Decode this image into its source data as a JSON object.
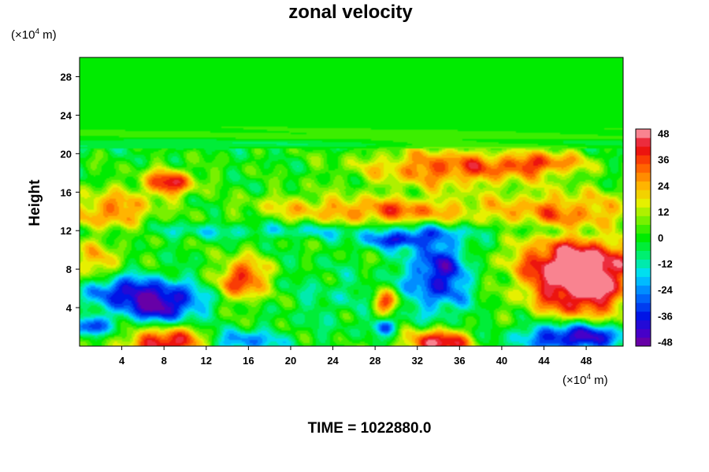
{
  "chart_data": {
    "type": "heatmap",
    "title": "zonal velocity",
    "ylabel": "Height",
    "xunit": {
      "pre": "(×10",
      "sup": "4",
      "post": " m)"
    },
    "yunit": {
      "pre": "(×10",
      "sup": "4",
      "post": " m)"
    },
    "footer": "TIME = 1022880.0",
    "xlim": [
      0,
      51.5
    ],
    "ylim": [
      0,
      30
    ],
    "xticks": [
      4,
      8,
      12,
      16,
      20,
      24,
      28,
      32,
      36,
      40,
      44,
      48
    ],
    "yticks": [
      4,
      8,
      12,
      16,
      20,
      24,
      28
    ],
    "colorbar": {
      "ticks": [
        48,
        36,
        24,
        12,
        0,
        -12,
        -24,
        -36,
        -48
      ],
      "range": [
        -50,
        50
      ],
      "levels": 25
    },
    "features": [
      {
        "x": 0,
        "y": 22,
        "rx": 60,
        "ry": 0.6,
        "v": 4,
        "desc": "stratified band"
      },
      {
        "x": 0,
        "y": 21,
        "rx": 60,
        "ry": 0.5,
        "v": -6
      },
      {
        "x": 35,
        "y": 18.5,
        "rx": 8,
        "ry": 2,
        "v": 34
      },
      {
        "x": 44,
        "y": 19,
        "rx": 4,
        "ry": 1.2,
        "v": 28
      },
      {
        "x": 8.5,
        "y": 17,
        "rx": 2.5,
        "ry": 1.4,
        "v": 40
      },
      {
        "x": 3,
        "y": 14,
        "rx": 4,
        "ry": 2.2,
        "v": 30
      },
      {
        "x": 30,
        "y": 14,
        "rx": 8,
        "ry": 1.5,
        "v": 32
      },
      {
        "x": 46,
        "y": 14,
        "rx": 7,
        "ry": 2.2,
        "v": 28
      },
      {
        "x": 20,
        "y": 14.5,
        "rx": 5,
        "ry": 1.5,
        "v": 12
      },
      {
        "x": 25,
        "y": 12,
        "rx": 30,
        "ry": 0.8,
        "v": -14
      },
      {
        "x": 30,
        "y": 11,
        "rx": 3,
        "ry": 0.8,
        "v": -34
      },
      {
        "x": 34,
        "y": 7.5,
        "rx": 3,
        "ry": 4,
        "v": -40
      },
      {
        "x": 7.5,
        "y": 4.5,
        "rx": 4,
        "ry": 2.2,
        "v": -50
      },
      {
        "x": 3,
        "y": 6,
        "rx": 3,
        "ry": 1.5,
        "v": -30
      },
      {
        "x": 15.5,
        "y": 7,
        "rx": 2.2,
        "ry": 2.2,
        "v": 42
      },
      {
        "x": 1.5,
        "y": 8.5,
        "rx": 2.5,
        "ry": 2.5,
        "v": 22
      },
      {
        "x": 47.5,
        "y": 6,
        "rx": 5,
        "ry": 3.5,
        "v": 50
      },
      {
        "x": 47,
        "y": 9,
        "rx": 6,
        "ry": 2.5,
        "v": 36
      },
      {
        "x": 47,
        "y": 1,
        "rx": 5,
        "ry": 1.5,
        "v": -50
      },
      {
        "x": 8.5,
        "y": 0.3,
        "rx": 4,
        "ry": 1.8,
        "v": 50
      },
      {
        "x": 34,
        "y": 0.3,
        "rx": 3,
        "ry": 1.5,
        "v": 50
      },
      {
        "x": 29,
        "y": 4.5,
        "rx": 1.2,
        "ry": 1.2,
        "v": 36
      },
      {
        "x": 29,
        "y": 2,
        "rx": 1.2,
        "ry": 0.8,
        "v": -30
      },
      {
        "x": 15,
        "y": 0.5,
        "rx": 4,
        "ry": 1.2,
        "v": -28
      },
      {
        "x": 1,
        "y": 2,
        "rx": 1.5,
        "ry": 1,
        "v": -36
      },
      {
        "x": 24,
        "y": 5,
        "rx": 4,
        "ry": 3,
        "v": -8
      }
    ]
  }
}
